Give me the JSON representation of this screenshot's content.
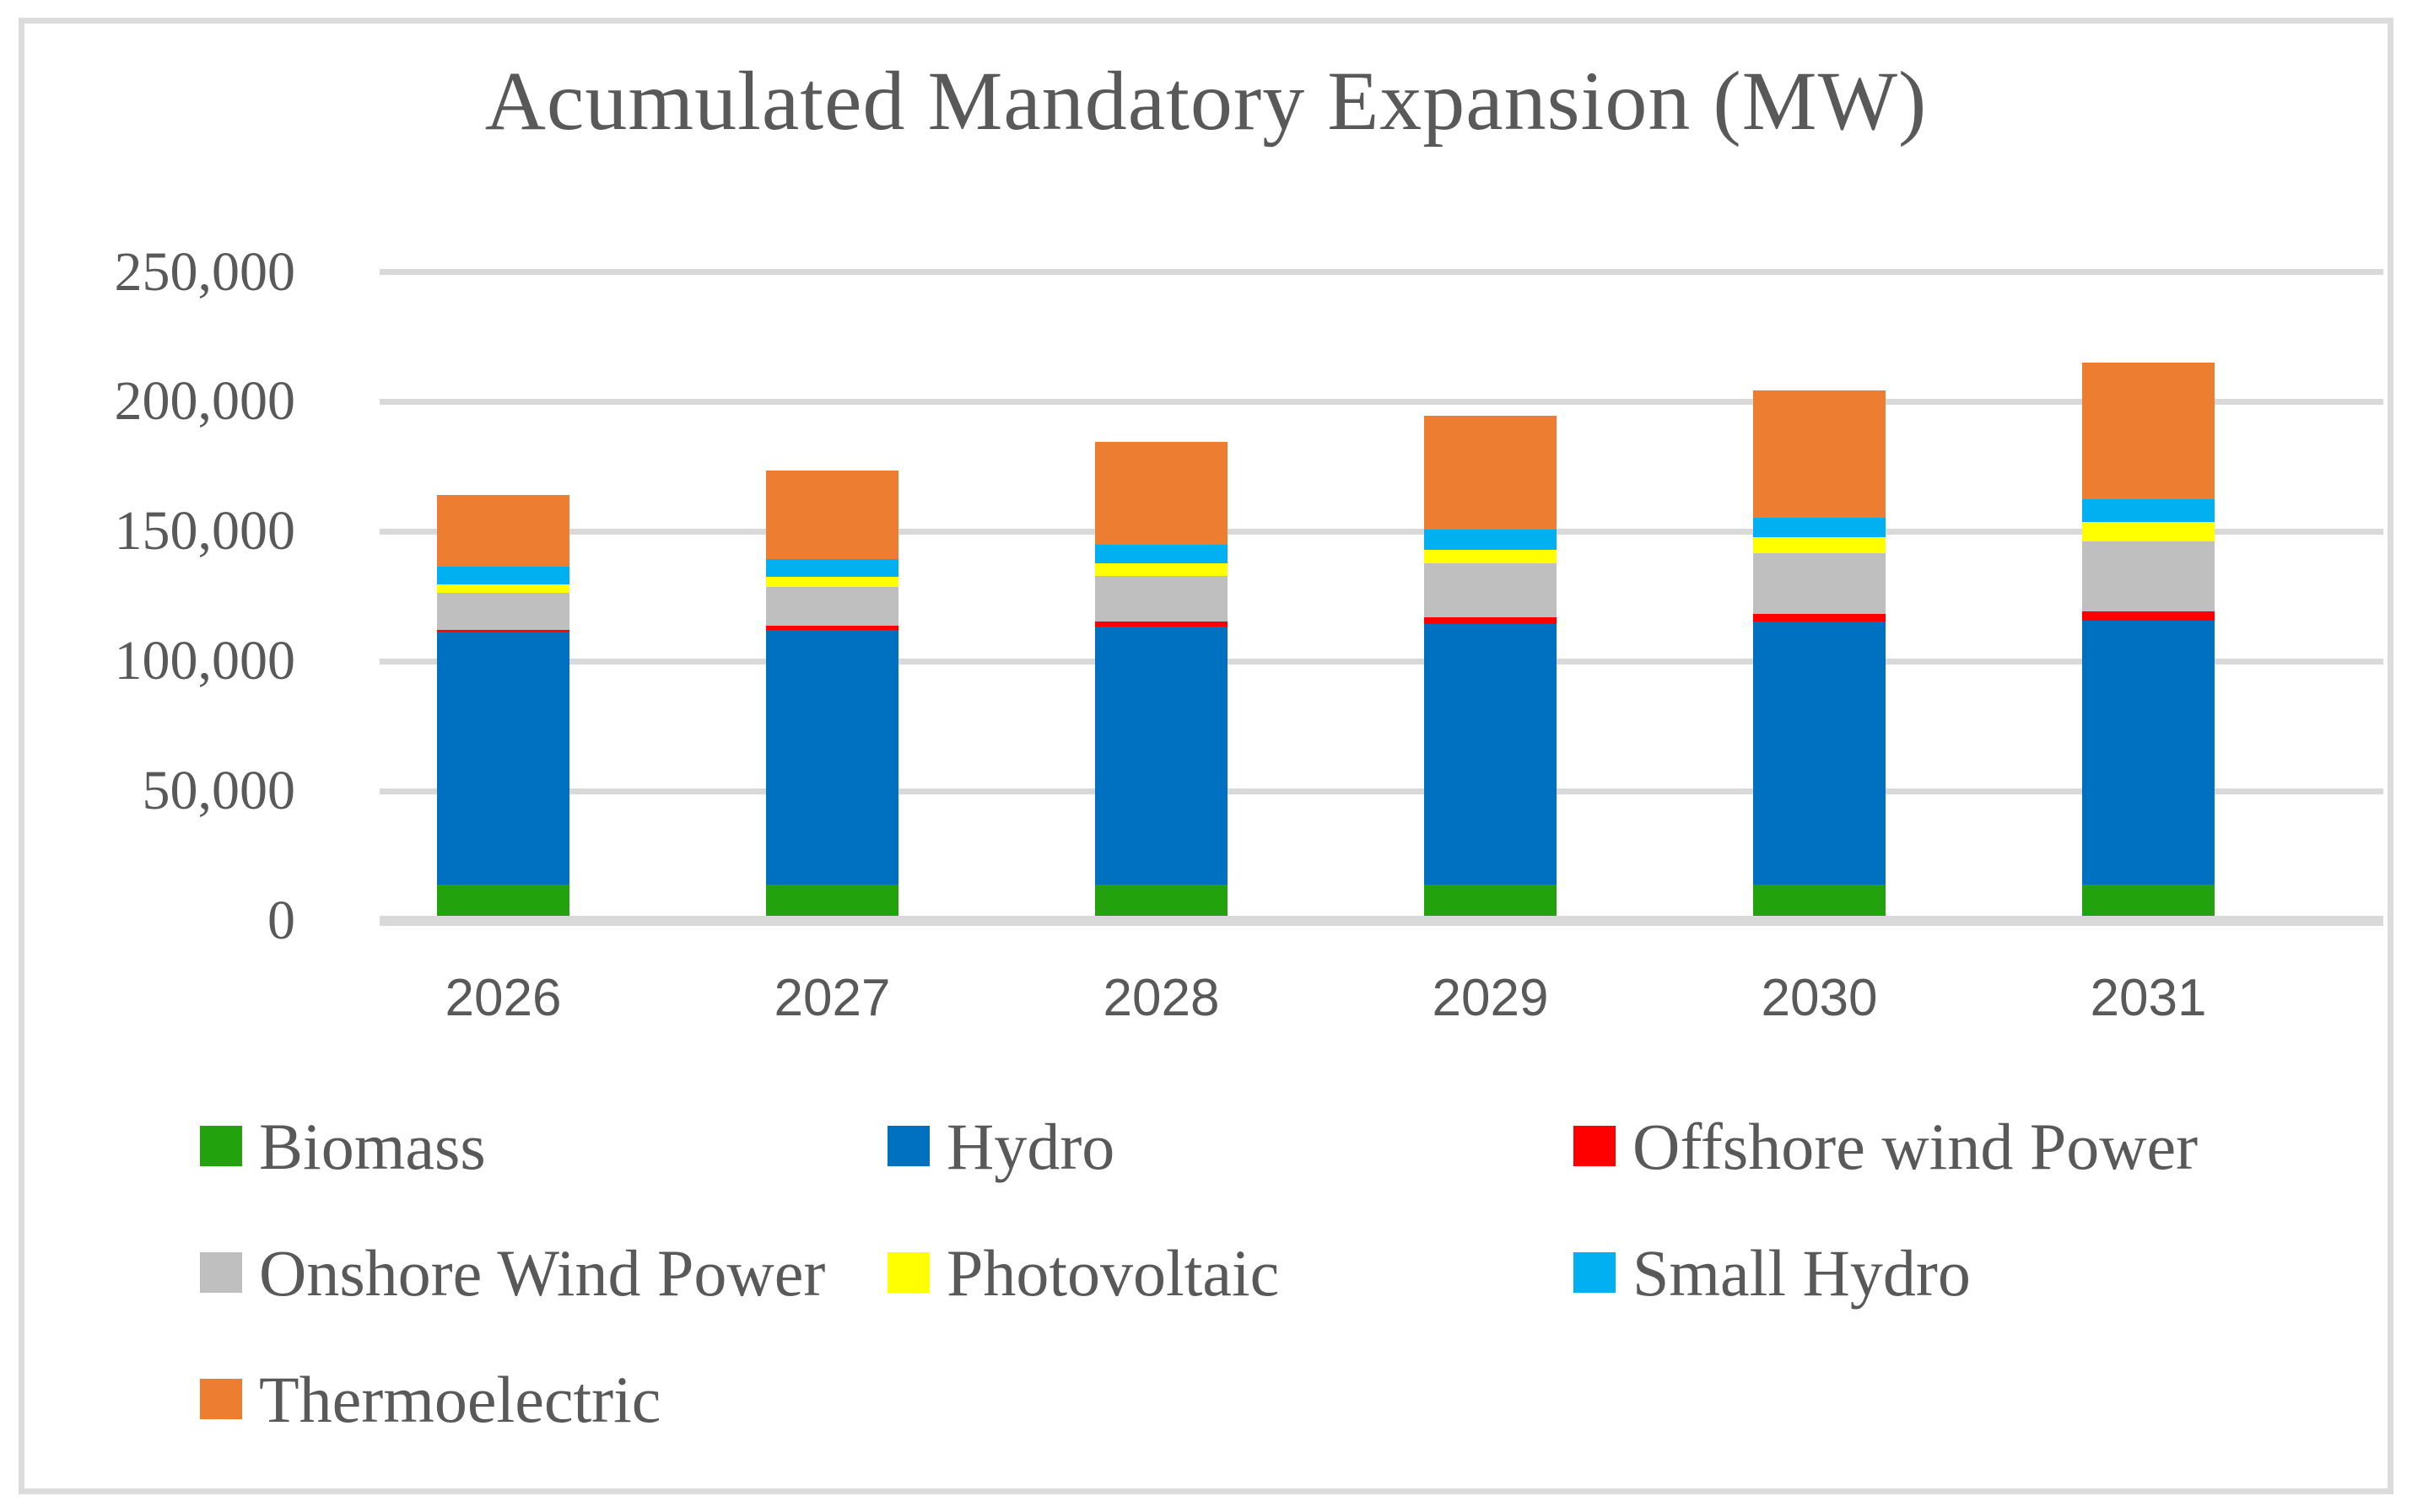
{
  "title": "Acumulated Mandatory Expansion (MW)",
  "y_axis": {
    "tick_labels_top_down": [
      "250,000",
      "200,000",
      "150,000",
      "100,000",
      "50,000",
      "0"
    ]
  },
  "chart_data": {
    "type": "bar",
    "stacked": true,
    "title": "Acumulated Mandatory Expansion (MW)",
    "categories": [
      "2026",
      "2027",
      "2028",
      "2029",
      "2030",
      "2031"
    ],
    "series": [
      {
        "name": "Biomass",
        "color": "#22A30D",
        "values": [
          13900,
          13900,
          13900,
          13900,
          13900,
          13900
        ]
      },
      {
        "name": "Hydro",
        "color": "#0070C0",
        "values": [
          97600,
          98200,
          99500,
          100400,
          101500,
          101700
        ]
      },
      {
        "name": "Offshore wind Power",
        "color": "#FF0000",
        "values": [
          700,
          1500,
          2000,
          2700,
          2700,
          3600
        ]
      },
      {
        "name": "Onshore Wind Power",
        "color": "#BFBFBF",
        "values": [
          14300,
          14900,
          17600,
          20600,
          23500,
          27000
        ]
      },
      {
        "name": "Photovoltaic",
        "color": "#FFFF00",
        "values": [
          3100,
          4100,
          4600,
          5200,
          6200,
          7600
        ]
      },
      {
        "name": "Small Hydro",
        "color": "#00B0F0",
        "values": [
          6800,
          6700,
          7200,
          8000,
          7500,
          8600
        ]
      },
      {
        "name": "Thermoelectric",
        "color": "#ED7D31",
        "values": [
          27600,
          34300,
          39600,
          43800,
          49200,
          52800
        ]
      }
    ],
    "stack_totals": [
      164000,
      173600,
      184400,
      194600,
      204500,
      215200
    ],
    "ylim": [
      0,
      250000
    ],
    "ytick_step": 50000,
    "grid": true,
    "legend_position": "bottom"
  },
  "legend": {
    "items": [
      {
        "label": "Biomass",
        "color": "#22A30D"
      },
      {
        "label": "Hydro",
        "color": "#0070C0"
      },
      {
        "label": "Offshore wind Power",
        "color": "#FF0000"
      },
      {
        "label": "Onshore Wind Power",
        "color": "#BFBFBF"
      },
      {
        "label": "Photovoltaic",
        "color": "#FFFF00"
      },
      {
        "label": "Small Hydro",
        "color": "#00B0F0"
      },
      {
        "label": "Thermoelectric",
        "color": "#ED7D31"
      }
    ]
  },
  "colors": {
    "text": "#595959",
    "gridline": "#D9D9D9",
    "frame_border": "#DCDCDC",
    "background": "#FFFFFF"
  }
}
